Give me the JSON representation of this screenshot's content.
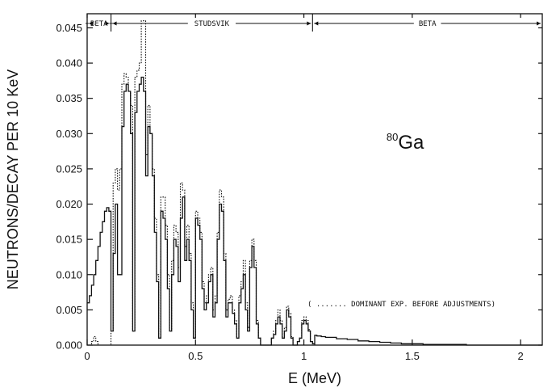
{
  "chart_data": {
    "type": "line",
    "title": "",
    "xlabel": "E  (MeV)",
    "ylabel": "NEUTRONS/DECAY PER 10 KeV",
    "xlim": [
      0,
      2.1
    ],
    "ylim": [
      0,
      0.047
    ],
    "x_ticks": [
      {
        "value": 0,
        "label": "0"
      },
      {
        "value": 0.5,
        "label": "0.5"
      },
      {
        "value": 1,
        "label": "1"
      },
      {
        "value": 1.5,
        "label": "1.5"
      },
      {
        "value": 2,
        "label": "2"
      }
    ],
    "y_ticks": [
      {
        "value": 0,
        "label": "0.000"
      },
      {
        "value": 0.005,
        "label": "0.005"
      },
      {
        "value": 0.01,
        "label": "0.010"
      },
      {
        "value": 0.015,
        "label": "0.015"
      },
      {
        "value": 0.02,
        "label": "0.020"
      },
      {
        "value": 0.025,
        "label": "0.025"
      },
      {
        "value": 0.03,
        "label": "0.030"
      },
      {
        "value": 0.035,
        "label": "0.035"
      },
      {
        "value": 0.04,
        "label": "0.040"
      },
      {
        "value": 0.045,
        "label": "0.045"
      }
    ],
    "annotation": {
      "prefix": "80",
      "element": "Ga",
      "x": 1.53,
      "y": 0.029
    },
    "regions": [
      {
        "label": "BETA",
        "start": 0,
        "end": 0.11
      },
      {
        "label": "STUDSVIK",
        "start": 0.11,
        "end": 1.04
      },
      {
        "label": "BETA",
        "start": 1.04,
        "end": 2.1
      }
    ],
    "legend_note": "( ....... DOMINANT EXP. BEFORE ADJUSTMENTS)",
    "series": [
      {
        "style": "solid",
        "x": [
          0,
          0.01,
          0.02,
          0.03,
          0.04,
          0.05,
          0.06,
          0.07,
          0.08,
          0.09,
          0.1,
          0.11,
          0.12,
          0.13,
          0.14,
          0.15,
          0.16,
          0.17,
          0.18,
          0.19,
          0.2,
          0.21,
          0.22,
          0.23,
          0.24,
          0.25,
          0.26,
          0.27,
          0.28,
          0.29,
          0.3,
          0.31,
          0.32,
          0.33,
          0.34,
          0.35,
          0.36,
          0.37,
          0.38,
          0.39,
          0.4,
          0.41,
          0.42,
          0.43,
          0.44,
          0.45,
          0.46,
          0.47,
          0.48,
          0.49,
          0.5,
          0.51,
          0.52,
          0.53,
          0.54,
          0.55,
          0.56,
          0.57,
          0.58,
          0.59,
          0.6,
          0.61,
          0.62,
          0.63,
          0.64,
          0.65,
          0.66,
          0.67,
          0.68,
          0.69,
          0.7,
          0.71,
          0.72,
          0.73,
          0.74,
          0.75,
          0.76,
          0.77,
          0.78,
          0.79,
          0.8,
          0.81,
          0.82,
          0.83,
          0.84,
          0.85,
          0.86,
          0.87,
          0.88,
          0.89,
          0.9,
          0.91,
          0.92,
          0.93,
          0.94,
          0.95,
          0.96,
          0.97,
          0.98,
          0.99,
          1.0,
          1.01,
          1.02,
          1.03,
          1.04,
          1.05,
          1.06,
          1.08,
          1.1,
          1.15,
          1.2,
          1.25,
          1.3,
          1.35,
          1.4,
          1.45,
          1.5,
          1.55,
          1.6,
          1.65,
          1.7,
          1.75,
          1.8,
          1.85,
          1.9,
          1.95,
          2.0,
          2.05,
          2.1
        ],
        "y": [
          0.006,
          0.007,
          0.0085,
          0.01,
          0.012,
          0.014,
          0.016,
          0.0175,
          0.019,
          0.0195,
          0.019,
          0.002,
          0.013,
          0.02,
          0.01,
          0.01,
          0.031,
          0.036,
          0.037,
          0.036,
          0.03,
          0.002,
          0.033,
          0.036,
          0.037,
          0.038,
          0.036,
          0.024,
          0.031,
          0.03,
          0.024,
          0.016,
          0.009,
          0.001,
          0.019,
          0.018,
          0.015,
          0.008,
          0.002,
          0.01,
          0.015,
          0.014,
          0.009,
          0.018,
          0.021,
          0.012,
          0.015,
          0.012,
          0.005,
          0.001,
          0.018,
          0.017,
          0.015,
          0.008,
          0.005,
          0.006,
          0.009,
          0.01,
          0.004,
          0.006,
          0.015,
          0.02,
          0.019,
          0.012,
          0.004,
          0.006,
          0.006,
          0.0045,
          0.003,
          0.001,
          0.006,
          0.008,
          0.01,
          0.005,
          0.002,
          0.011,
          0.014,
          0.011,
          0.003,
          0.001,
          0.0,
          0.0,
          0.0,
          0.0,
          0.0,
          0.001,
          0.0015,
          0.003,
          0.004,
          0.003,
          0.001,
          0.002,
          0.005,
          0.004,
          0.001,
          0.0,
          0.0,
          0.0005,
          0.001,
          0.003,
          0.0035,
          0.003,
          0.002,
          0.0005,
          0.0002,
          0.0014,
          0.0013,
          0.0012,
          0.0011,
          0.0009,
          0.0008,
          0.0006,
          0.0005,
          0.0004,
          0.0003,
          0.0002,
          0.0002,
          0.0001,
          0.0001,
          0.0001,
          0.0001,
          0.0,
          0.0,
          0.0,
          0.0,
          0.0,
          0.0,
          0.0,
          0.0
        ]
      },
      {
        "style": "dotted",
        "x": [
          0,
          0.01,
          0.02,
          0.03,
          0.04,
          0.05,
          0.06,
          0.07,
          0.08,
          0.09,
          0.1,
          0.11,
          0.12,
          0.13,
          0.14,
          0.15,
          0.16,
          0.17,
          0.18,
          0.19,
          0.2,
          0.21,
          0.22,
          0.23,
          0.24,
          0.25,
          0.26,
          0.27,
          0.28,
          0.29,
          0.3,
          0.31,
          0.32,
          0.33,
          0.34,
          0.35,
          0.36,
          0.37,
          0.38,
          0.39,
          0.4,
          0.41,
          0.42,
          0.43,
          0.44,
          0.45,
          0.46,
          0.47,
          0.48,
          0.49,
          0.5,
          0.51,
          0.52,
          0.53,
          0.54,
          0.55,
          0.56,
          0.57,
          0.58,
          0.59,
          0.6,
          0.61,
          0.62,
          0.63,
          0.64,
          0.65,
          0.66,
          0.67,
          0.68,
          0.69,
          0.7,
          0.71,
          0.72,
          0.73,
          0.74,
          0.75,
          0.76,
          0.77,
          0.78,
          0.79,
          0.8,
          0.81,
          0.82,
          0.83,
          0.84,
          0.85,
          0.86,
          0.87,
          0.88,
          0.89,
          0.9,
          0.91,
          0.92,
          0.93,
          0.94,
          0.95,
          0.96,
          0.97,
          0.98,
          0.99,
          1.0,
          1.01,
          1.02,
          1.03,
          1.04,
          1.05
        ],
        "y": [
          0.0,
          0.0,
          0.0005,
          0.0012,
          0.0005,
          0.0,
          0.0,
          0.0,
          0.0,
          0.0,
          0.0,
          0.002,
          0.023,
          0.025,
          0.022,
          0.025,
          0.037,
          0.0385,
          0.038,
          0.036,
          0.034,
          0.002,
          0.038,
          0.039,
          0.04,
          0.046,
          0.046,
          0.027,
          0.034,
          0.03,
          0.025,
          0.018,
          0.01,
          0.001,
          0.021,
          0.021,
          0.017,
          0.01,
          0.002,
          0.012,
          0.017,
          0.016,
          0.011,
          0.023,
          0.022,
          0.014,
          0.017,
          0.013,
          0.006,
          0.001,
          0.019,
          0.018,
          0.016,
          0.009,
          0.006,
          0.007,
          0.01,
          0.011,
          0.005,
          0.007,
          0.016,
          0.022,
          0.021,
          0.013,
          0.005,
          0.0065,
          0.007,
          0.005,
          0.0035,
          0.0012,
          0.007,
          0.009,
          0.012,
          0.006,
          0.0025,
          0.012,
          0.015,
          0.012,
          0.0035,
          0.001,
          0.0,
          0.0,
          0.0,
          0.0,
          0.0,
          0.001,
          0.002,
          0.0035,
          0.005,
          0.0035,
          0.0012,
          0.0025,
          0.0055,
          0.0045,
          0.0012,
          0.0,
          0.0,
          0.0005,
          0.001,
          0.0035,
          0.004,
          0.0035,
          0.0022,
          0.0005,
          0.0002,
          0.0
        ]
      }
    ]
  }
}
